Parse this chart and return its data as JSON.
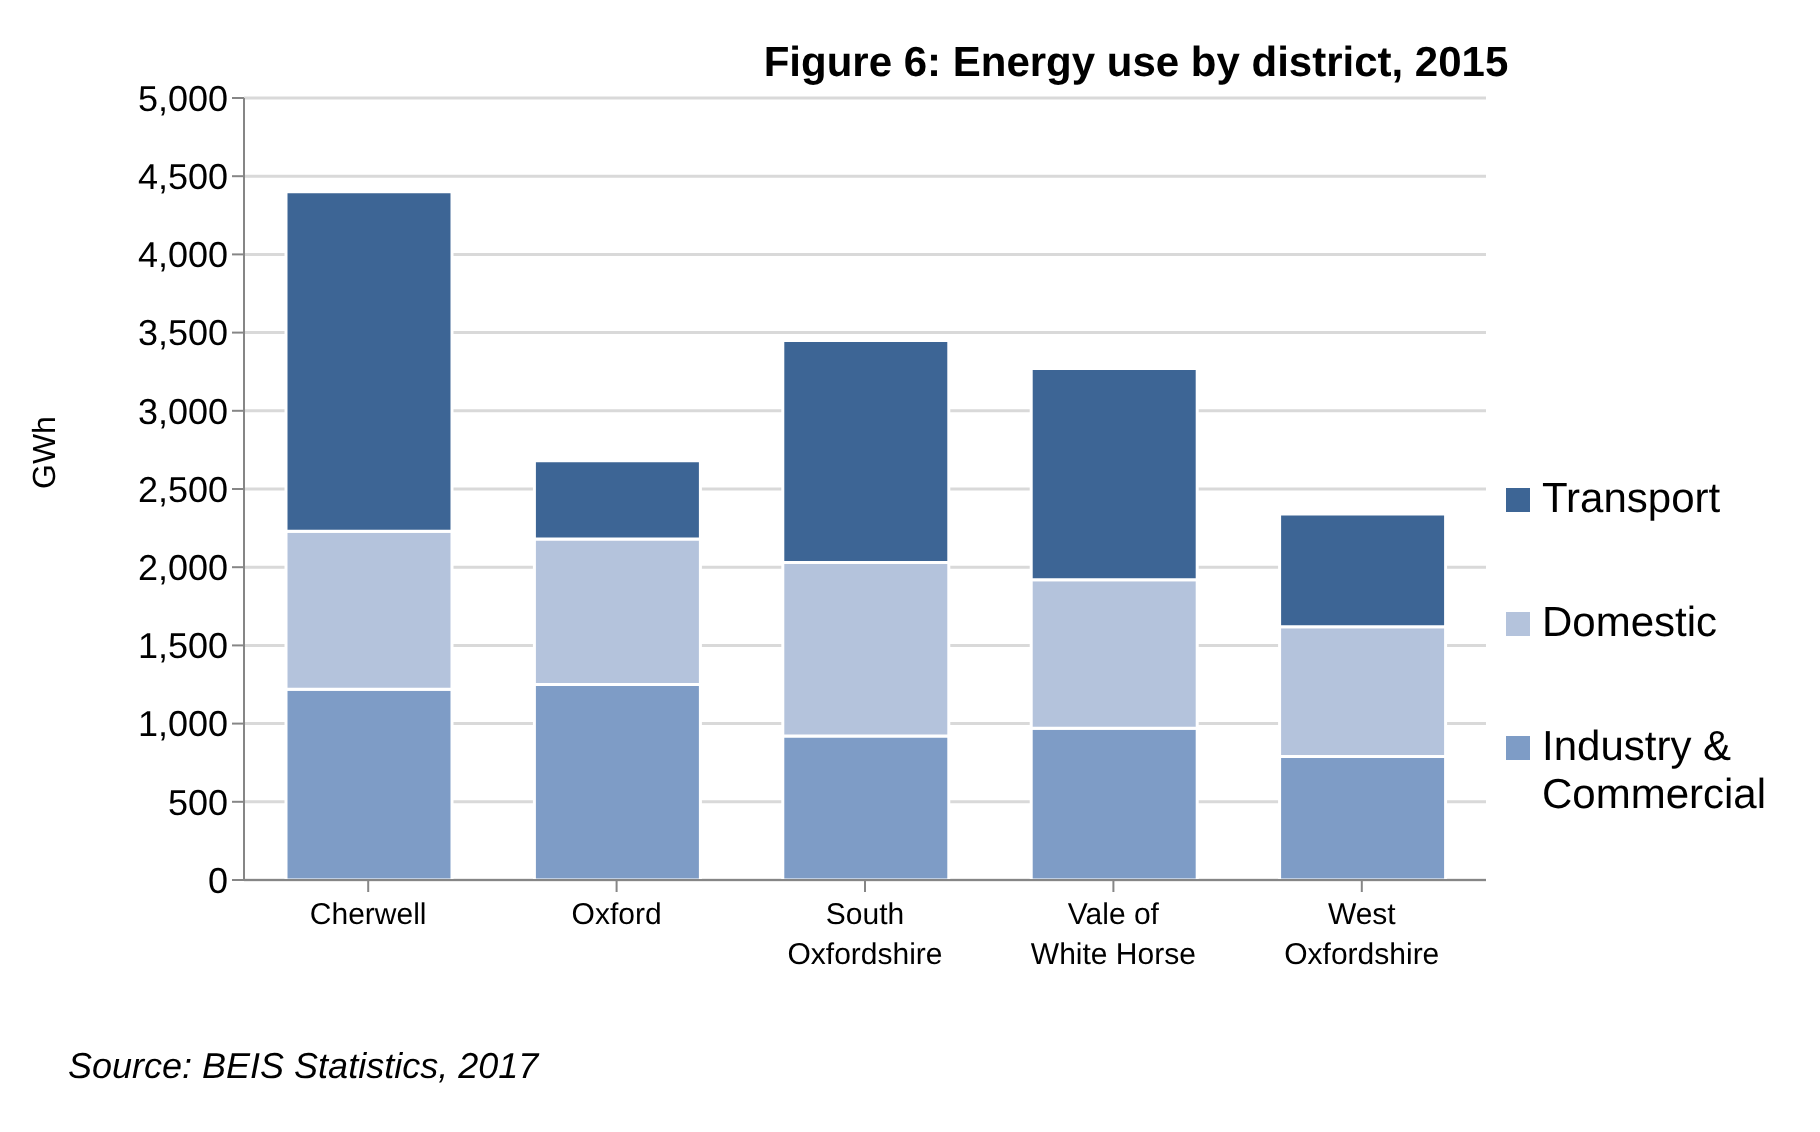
{
  "chart_data": {
    "type": "bar",
    "title": "Figure 6: Energy use by district, 2015",
    "ylabel": "GWh",
    "annotations": [
      "Source: BEIS Statistics, 2017"
    ],
    "categories": [
      "Cherwell",
      "Oxford",
      "South Oxfordshire",
      "Vale of White Horse",
      "West Oxfordshire"
    ],
    "series": [
      {
        "name": "Industry & Commercial",
        "color": "#7e9cc6",
        "values": [
          1220,
          1250,
          920,
          970,
          790
        ]
      },
      {
        "name": "Domestic",
        "color": "#b4c3dc",
        "values": [
          1010,
          930,
          1110,
          950,
          830
        ]
      },
      {
        "name": "Transport",
        "color": "#3d6595",
        "values": [
          2170,
          500,
          1420,
          1350,
          720
        ]
      }
    ],
    "stacked": true,
    "ylim": [
      0,
      5000
    ],
    "yticks": [
      0,
      500,
      {
        "value": 1000,
        "label": "1,000"
      },
      {
        "value": 1500,
        "label": "1,500"
      },
      {
        "value": 2000,
        "label": "2,000"
      },
      {
        "value": 2500,
        "label": "2,500"
      },
      {
        "value": 3000,
        "label": "3,000"
      },
      {
        "value": 3500,
        "label": "3,500"
      },
      {
        "value": 4000,
        "label": "4,000"
      },
      {
        "value": 4500,
        "label": "4,500"
      },
      {
        "value": 5000,
        "label": "5,000"
      }
    ],
    "grid": "y",
    "legend": "right"
  }
}
